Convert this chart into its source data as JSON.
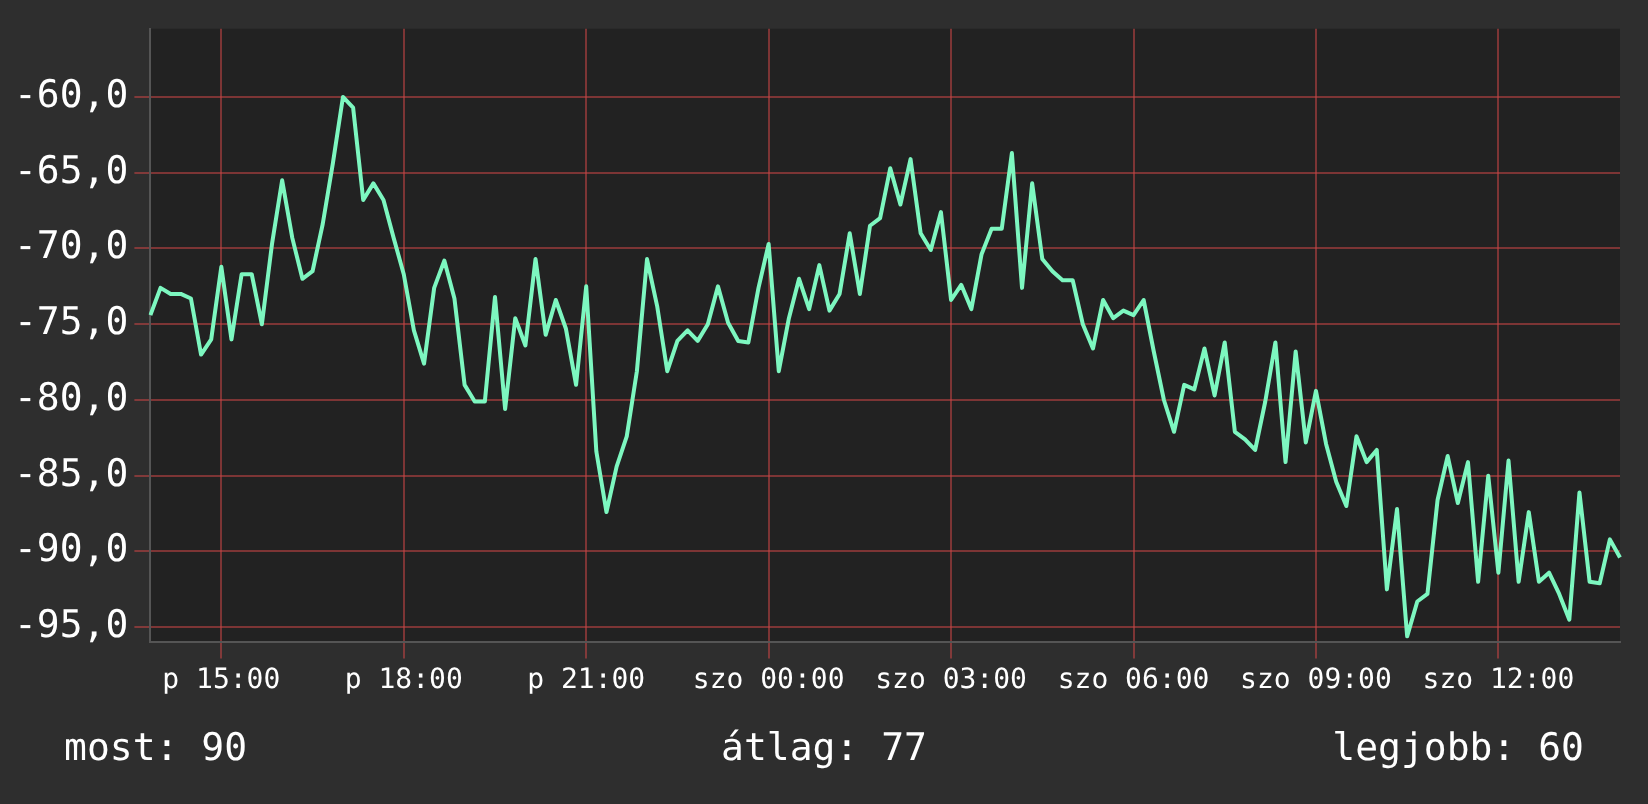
{
  "chart_data": {
    "type": "line",
    "categories": [
      null,
      null,
      null,
      null,
      null,
      null,
      null,
      "p 15:00",
      null,
      null,
      null,
      null,
      null,
      null,
      null,
      null,
      null,
      null,
      null,
      null,
      null,
      null,
      null,
      null,
      null,
      "p 18:00",
      null,
      null,
      null,
      null,
      null,
      null,
      null,
      null,
      null,
      null,
      null,
      null,
      null,
      null,
      null,
      null,
      null,
      "p 21:00",
      null,
      null,
      null,
      null,
      null,
      null,
      null,
      null,
      null,
      null,
      null,
      null,
      null,
      null,
      null,
      null,
      null,
      "szo 00:00",
      null,
      null,
      null,
      null,
      null,
      null,
      null,
      null,
      null,
      null,
      null,
      null,
      null,
      null,
      null,
      null,
      null,
      "szo 03:00",
      null,
      null,
      null,
      null,
      null,
      null,
      null,
      null,
      null,
      null,
      null,
      null,
      null,
      null,
      null,
      null,
      null,
      "szo 06:00",
      null,
      null,
      null,
      null,
      null,
      null,
      null,
      null,
      null,
      null,
      null,
      null,
      null,
      null,
      null,
      null,
      null,
      "szo 09:00",
      null,
      null,
      null,
      null,
      null,
      null,
      null,
      null,
      null,
      null,
      null,
      null,
      null,
      null,
      null,
      null,
      null,
      "szo 12:00",
      null,
      null,
      null,
      null,
      null,
      null,
      null,
      null,
      null,
      null,
      null,
      null
    ],
    "series": [
      {
        "color": "#7df7c0",
        "values": [
          -74.4,
          -72.6,
          -73,
          -73,
          -73.3,
          -77,
          -76,
          -71.2,
          -76,
          -71.7,
          -71.7,
          -75,
          -69.7,
          -65.5,
          -69.3,
          -72,
          -71.5,
          -68.4,
          -64.4,
          -60,
          -60.7,
          -66.8,
          -65.7,
          -66.8,
          -69.3,
          -71.7,
          -75.4,
          -77.6,
          -72.6,
          -70.8,
          -73.3,
          -79,
          -80.1,
          -80.1,
          -73.2,
          -80.6,
          -74.6,
          -76.4,
          -70.7,
          -75.7,
          -73.4,
          -75.3,
          -79,
          -72.5,
          -83.4,
          -87.4,
          -84.4,
          -82.4,
          -78.1,
          -70.7,
          -73.8,
          -78.1,
          -76.1,
          -75.4,
          -76.1,
          -75,
          -72.5,
          -74.9,
          -76.1,
          -76.2,
          -72.6,
          -69.7,
          -78.1,
          -74.6,
          -72,
          -74,
          -71.1,
          -74.1,
          -73,
          -69,
          -73,
          -68.5,
          -68,
          -64.7,
          -67.1,
          -64.1,
          -69,
          -70.1,
          -67.6,
          -73.4,
          -72.4,
          -74,
          -70.4,
          -68.7,
          -68.7,
          -63.7,
          -72.6,
          -65.7,
          -70.7,
          -71.5,
          -72.1,
          -72.1,
          -75,
          -76.6,
          -73.4,
          -74.6,
          -74.1,
          -74.4,
          -73.4,
          -76.8,
          -80,
          -82.1,
          -79,
          -79.3,
          -76.6,
          -79.7,
          -76.2,
          -82.1,
          -82.6,
          -83.3,
          -80.1,
          -76.2,
          -84.1,
          -76.8,
          -82.8,
          -79.4,
          -82.9,
          -85.4,
          -87,
          -82.4,
          -84.1,
          -83.3,
          -92.5,
          -87.2,
          -95.6,
          -93.3,
          -92.8,
          -86.6,
          -83.7,
          -86.8,
          -84.1,
          -92,
          -85,
          -91.4,
          -84,
          -92,
          -87.4,
          -92,
          -91.4,
          -92.8,
          -94.5,
          -86.1,
          -92,
          -92.1,
          -89.2,
          -90.4
        ]
      }
    ],
    "ylim": [
      -96,
      -55.5
    ],
    "yticks": [
      {
        "value": -95,
        "label": "-95,0"
      },
      {
        "value": -90,
        "label": "-90,0"
      },
      {
        "value": -85,
        "label": "-85,0"
      },
      {
        "value": -80,
        "label": "-80,0"
      },
      {
        "value": -75,
        "label": "-75,0"
      },
      {
        "value": -70,
        "label": "-70,0"
      },
      {
        "value": -65,
        "label": "-65,0"
      },
      {
        "value": -60,
        "label": "-60,0"
      }
    ],
    "grid": true,
    "legend": false,
    "marker": "none",
    "line_style": "solid",
    "annotations": [
      "most: 90",
      "átlag: 77",
      "legjobb: 60"
    ]
  }
}
